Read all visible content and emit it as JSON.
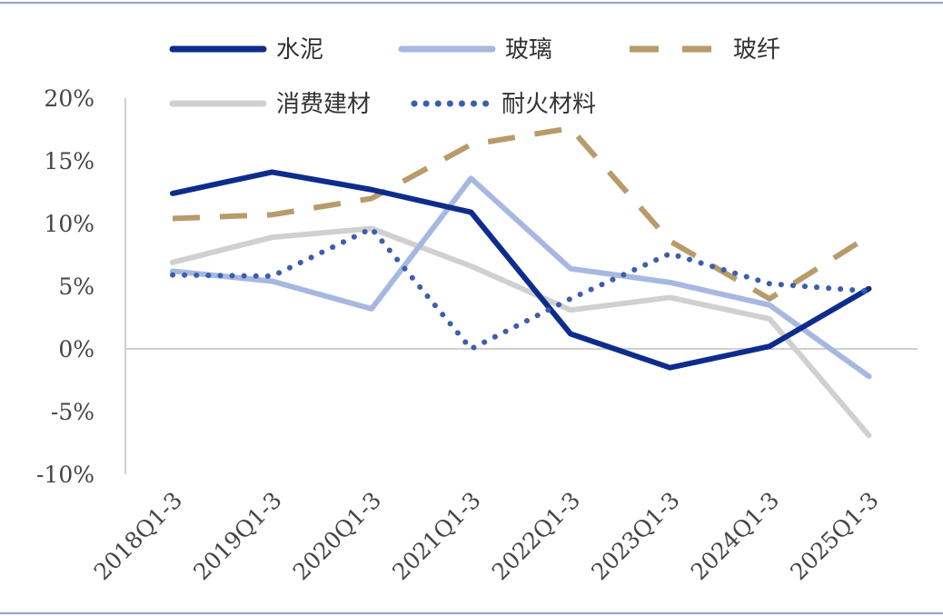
{
  "chart_data": {
    "type": "line",
    "title": "",
    "xlabel": "",
    "ylabel": "",
    "categories": [
      "2018Q1-3",
      "2019Q1-3",
      "2020Q1-3",
      "2021Q1-3",
      "2022Q1-3",
      "2023Q1-3",
      "2024Q1-3",
      "2025Q1-3"
    ],
    "y_ticks": [
      "20%",
      "15%",
      "10%",
      "5%",
      "0%",
      "-5%",
      "-10%"
    ],
    "y_tick_values": [
      20,
      15,
      10,
      5,
      0,
      -5,
      -10
    ],
    "ylim": [
      -10,
      20
    ],
    "legend_position": "top",
    "series": [
      {
        "name": "水泥",
        "values": [
          12.4,
          14.1,
          12.7,
          10.9,
          1.2,
          -1.5,
          0.2,
          4.8
        ],
        "color": "#0e2c8c",
        "style": "solid"
      },
      {
        "name": "玻璃",
        "values": [
          6.2,
          5.4,
          3.2,
          13.6,
          6.4,
          5.3,
          3.5,
          -2.2
        ],
        "color": "#a7b8e0",
        "style": "solid"
      },
      {
        "name": "玻纤",
        "values": [
          10.4,
          10.7,
          12.0,
          16.3,
          17.6,
          8.6,
          4.0,
          9.0
        ],
        "color": "#b79b6b",
        "style": "dashed"
      },
      {
        "name": "消费建材",
        "values": [
          6.9,
          8.9,
          9.6,
          6.6,
          3.1,
          4.1,
          2.4,
          -6.9
        ],
        "color": "#d0d0d0",
        "style": "solid"
      },
      {
        "name": "耐火材料",
        "values": [
          5.9,
          5.8,
          9.6,
          0.0,
          4.0,
          7.6,
          5.2,
          4.6
        ],
        "color": "#3b5fad",
        "style": "dotted"
      }
    ]
  }
}
